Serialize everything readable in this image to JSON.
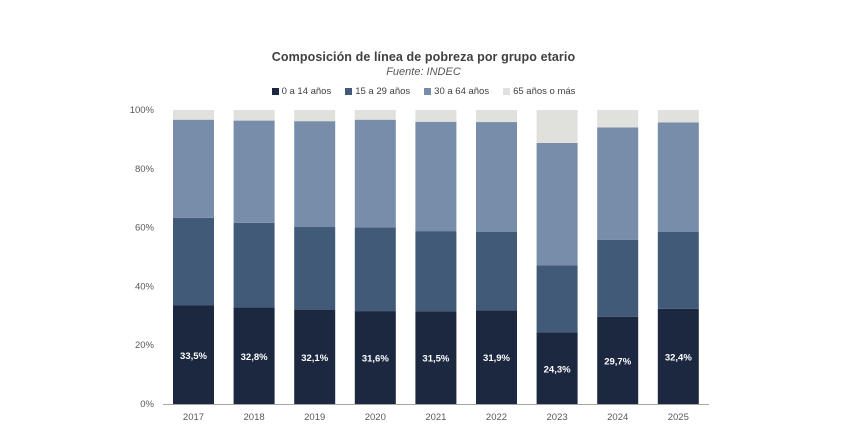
{
  "chart_data": {
    "type": "bar",
    "stacked": true,
    "title": "Composición  de línea de pobreza por grupo etario",
    "subtitle": "Fuente: INDEC",
    "xlabel": "",
    "ylabel": "",
    "ylim": [
      0,
      100
    ],
    "yticks": [
      "0%",
      "20%",
      "40%",
      "60%",
      "80%",
      "100%"
    ],
    "legend_position": "top",
    "categories": [
      "2017",
      "2018",
      "2019",
      "2020",
      "2021",
      "2022",
      "2023",
      "2024",
      "2025"
    ],
    "series": [
      {
        "name": "0 a 14 años",
        "color": "#1c2740",
        "values": [
          33.5,
          32.8,
          32.1,
          31.6,
          31.5,
          31.9,
          24.3,
          29.7,
          32.4
        ],
        "labels": [
          "33,5%",
          "32,8%",
          "32,1%",
          "31,6%",
          "31,5%",
          "31,9%",
          "24,3%",
          "29,7%",
          "32,4%"
        ]
      },
      {
        "name": "15 a 29 años",
        "color": "#415a77",
        "values": [
          29.8,
          28.8,
          28.1,
          28.5,
          27.3,
          26.6,
          22.9,
          26.1,
          26.1
        ]
      },
      {
        "name": "30 a 64 años",
        "color": "#778da9",
        "values": [
          33.4,
          34.8,
          36.0,
          36.6,
          37.2,
          37.4,
          41.6,
          38.3,
          37.3
        ]
      },
      {
        "name": "65 años o más",
        "color": "#e0e0dc",
        "values": [
          3.3,
          3.6,
          3.8,
          3.3,
          4.0,
          4.1,
          11.2,
          5.9,
          4.2
        ]
      }
    ]
  }
}
